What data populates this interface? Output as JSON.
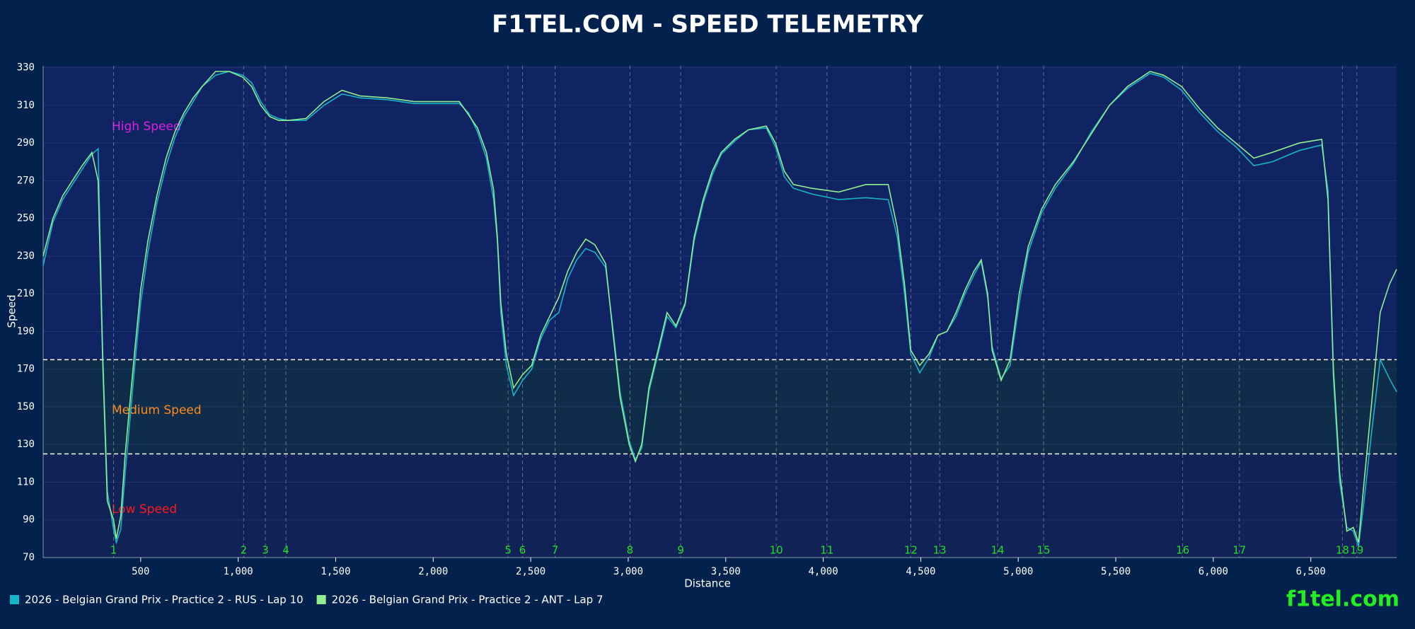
{
  "chart_data": {
    "type": "line",
    "title": "F1TEL.COM - SPEED TELEMETRY",
    "xlabel": "Distance",
    "ylabel": "Speed",
    "watermark": "f1tel.com",
    "xlim": [
      0,
      6940
    ],
    "ylim": [
      70,
      331
    ],
    "xticks": [
      500,
      {
        "value": 1000,
        "label": "1,000"
      },
      {
        "value": 1500,
        "label": "1,500"
      },
      {
        "value": 2000,
        "label": "2,000"
      },
      {
        "value": 2500,
        "label": "2,500"
      },
      {
        "value": 3000,
        "label": "3,000"
      },
      {
        "value": 3500,
        "label": "3,500"
      },
      {
        "value": 4000,
        "label": "4,000"
      },
      {
        "value": 4500,
        "label": "4,500"
      },
      {
        "value": 5000,
        "label": "5,000"
      },
      {
        "value": 5500,
        "label": "5,500"
      },
      {
        "value": 6000,
        "label": "6,000"
      },
      {
        "value": 6500,
        "label": "6,500"
      }
    ],
    "yticks": [
      70,
      90,
      110,
      130,
      150,
      170,
      190,
      210,
      230,
      250,
      270,
      290,
      310,
      330
    ],
    "thresholds": [
      125,
      175
    ],
    "zones": [
      {
        "label": "Low Speed",
        "color": "#ff1a1a"
      },
      {
        "label": "Medium Speed",
        "color": "#ff8c1a"
      },
      {
        "label": "High Speed",
        "color": "#e020e0"
      }
    ],
    "corners": [
      {
        "label": "1",
        "x": 361
      },
      {
        "label": "2",
        "x": 1028
      },
      {
        "label": "3",
        "x": 1139
      },
      {
        "label": "4",
        "x": 1245
      },
      {
        "label": "5",
        "x": 2384
      },
      {
        "label": "6",
        "x": 2458
      },
      {
        "label": "7",
        "x": 2625
      },
      {
        "label": "8",
        "x": 3009
      },
      {
        "label": "9",
        "x": 3269
      },
      {
        "label": "10",
        "x": 3759
      },
      {
        "label": "11",
        "x": 4019
      },
      {
        "label": "12",
        "x": 4449
      },
      {
        "label": "13",
        "x": 4597
      },
      {
        "label": "14",
        "x": 4894
      },
      {
        "label": "15",
        "x": 5130
      },
      {
        "label": "16",
        "x": 5843
      },
      {
        "label": "17",
        "x": 6134
      },
      {
        "label": "18",
        "x": 6662
      },
      {
        "label": "19",
        "x": 6736
      }
    ],
    "x": [
      0,
      50,
      100,
      150,
      200,
      250,
      282,
      305,
      329,
      361,
      375,
      398,
      421,
      468,
      500,
      537,
      583,
      630,
      676,
      722,
      769,
      815,
      884,
      954,
      1023,
      1069,
      1116,
      1162,
      1208,
      1255,
      1347,
      1440,
      1532,
      1625,
      1764,
      1903,
      2134,
      2181,
      2227,
      2273,
      2310,
      2329,
      2347,
      2375,
      2412,
      2458,
      2505,
      2551,
      2597,
      2644,
      2690,
      2736,
      2782,
      2829,
      2884,
      2921,
      2958,
      3005,
      3037,
      3069,
      3106,
      3153,
      3199,
      3245,
      3292,
      3338,
      3384,
      3431,
      3477,
      3546,
      3616,
      3708,
      3755,
      3801,
      3847,
      3940,
      4079,
      4218,
      4333,
      4380,
      4417,
      4449,
      4495,
      4542,
      4588,
      4634,
      4681,
      4727,
      4773,
      4810,
      4843,
      4866,
      4912,
      4958,
      5005,
      5051,
      5120,
      5190,
      5282,
      5375,
      5468,
      5560,
      5676,
      5745,
      5838,
      5931,
      6023,
      6116,
      6208,
      6301,
      6440,
      6556,
      6588,
      6616,
      6648,
      6685,
      6718,
      6745,
      6773,
      6810,
      6856,
      6903,
      6940
    ],
    "series": [
      {
        "name": "2026 - Belgian Grand Prix - Practice 2 - RUS - Lap 10",
        "color": "#17b3c8",
        "values": [
          225,
          248,
          260,
          268,
          276,
          284,
          287,
          180,
          105,
          85,
          78,
          85,
          115,
          170,
          205,
          232,
          258,
          278,
          293,
          304,
          312,
          320,
          326,
          328,
          326,
          322,
          312,
          305,
          303,
          302,
          302,
          310,
          316,
          314,
          313,
          311,
          311,
          306,
          296,
          282,
          260,
          238,
          200,
          172,
          156,
          164,
          170,
          186,
          196,
          200,
          218,
          228,
          234,
          232,
          224,
          192,
          158,
          132,
          122,
          128,
          158,
          178,
          198,
          192,
          204,
          238,
          258,
          273,
          284,
          291,
          297,
          298,
          288,
          272,
          266,
          263,
          260,
          261,
          260,
          240,
          210,
          178,
          168,
          176,
          188,
          190,
          198,
          210,
          220,
          227,
          208,
          182,
          165,
          172,
          205,
          232,
          253,
          266,
          279,
          296,
          310,
          319,
          327,
          325,
          318,
          306,
          296,
          288,
          278,
          280,
          286,
          289,
          265,
          165,
          110,
          86,
          84,
          76,
          100,
          135,
          175,
          165,
          158
        ]
      },
      {
        "name": "2026 - Belgian Grand Prix - Practice 2 - ANT - Lap 7",
        "color": "#90ee90",
        "values": [
          230,
          250,
          262,
          270,
          278,
          285,
          270,
          175,
          100,
          90,
          80,
          92,
          125,
          178,
          212,
          238,
          262,
          282,
          296,
          306,
          314,
          320,
          328,
          328,
          325,
          320,
          310,
          304,
          302,
          302,
          303,
          312,
          318,
          315,
          314,
          312,
          312,
          305,
          298,
          285,
          265,
          240,
          205,
          178,
          160,
          167,
          172,
          188,
          198,
          208,
          222,
          232,
          239,
          236,
          226,
          190,
          155,
          130,
          121,
          130,
          160,
          180,
          200,
          193,
          205,
          240,
          260,
          275,
          285,
          292,
          297,
          299,
          290,
          275,
          268,
          266,
          264,
          268,
          268,
          245,
          215,
          180,
          172,
          178,
          188,
          190,
          200,
          212,
          222,
          228,
          210,
          180,
          164,
          175,
          210,
          235,
          255,
          268,
          280,
          295,
          310,
          320,
          328,
          326,
          320,
          308,
          298,
          290,
          282,
          285,
          290,
          292,
          260,
          170,
          115,
          84,
          86,
          78,
          110,
          150,
          200,
          215,
          223
        ]
      }
    ]
  }
}
